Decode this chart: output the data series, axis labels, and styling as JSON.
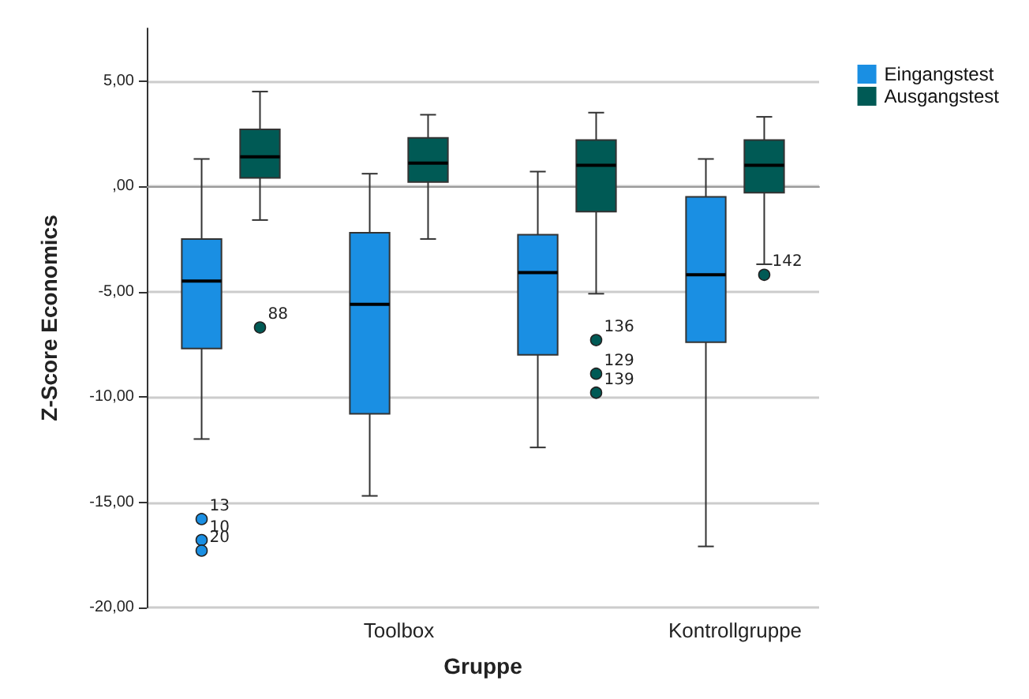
{
  "chart_data": {
    "type": "box",
    "xlabel": "Gruppe",
    "ylabel": "Z-Score Economics",
    "categories": [
      null,
      "Toolbox",
      null,
      "Kontrollgruppe"
    ],
    "ylim": [
      -20,
      7.5
    ],
    "yticks": [
      {
        "value": -20,
        "label": "-20,00"
      },
      {
        "value": -15,
        "label": "-15,00"
      },
      {
        "value": -10,
        "label": "-10,00"
      },
      {
        "value": -5,
        "label": "-5,00"
      },
      {
        "value": 0,
        "label": ",00"
      },
      {
        "value": 5,
        "label": "5,00"
      }
    ],
    "grid": "y",
    "legend": "top right",
    "series": [
      {
        "name": "Eingangstest",
        "color": "#1a8fe3",
        "boxes": [
          {
            "low": -12,
            "q1": -7.7,
            "median": -4.5,
            "q3": -2.5,
            "high": 1.3,
            "outliers": [
              -15.8,
              -16.8,
              -17.3
            ]
          },
          {
            "low": -14.7,
            "q1": -10.8,
            "median": -5.6,
            "q3": -2.2,
            "high": 0.6
          },
          {
            "low": -12.4,
            "q1": -8,
            "median": -4.1,
            "q3": -2.3,
            "high": 0.7
          },
          {
            "low": -17.1,
            "q1": -7.4,
            "median": -4.2,
            "q3": -0.5,
            "high": 1.3
          }
        ]
      },
      {
        "name": "Ausgangstest",
        "color": "#005a55",
        "boxes": [
          {
            "low": -1.6,
            "q1": 0.4,
            "median": 1.4,
            "q3": 2.7,
            "high": 4.5,
            "outliers": [
              -6.7
            ]
          },
          {
            "low": -2.5,
            "q1": 0.2,
            "median": 1.1,
            "q3": 2.3,
            "high": 3.4
          },
          {
            "low": -5.1,
            "q1": -1.2,
            "median": 1,
            "q3": 2.2,
            "high": 3.5,
            "outliers": [
              -7.3,
              -8.9,
              -9.8
            ]
          },
          {
            "low": -3.7,
            "q1": -0.3,
            "median": 1,
            "q3": 2.2,
            "high": 3.3,
            "outliers": [
              -4.2
            ]
          }
        ]
      }
    ],
    "annotations": [
      "13",
      "10",
      "20",
      "88",
      "136",
      "129",
      "139",
      "142"
    ]
  }
}
